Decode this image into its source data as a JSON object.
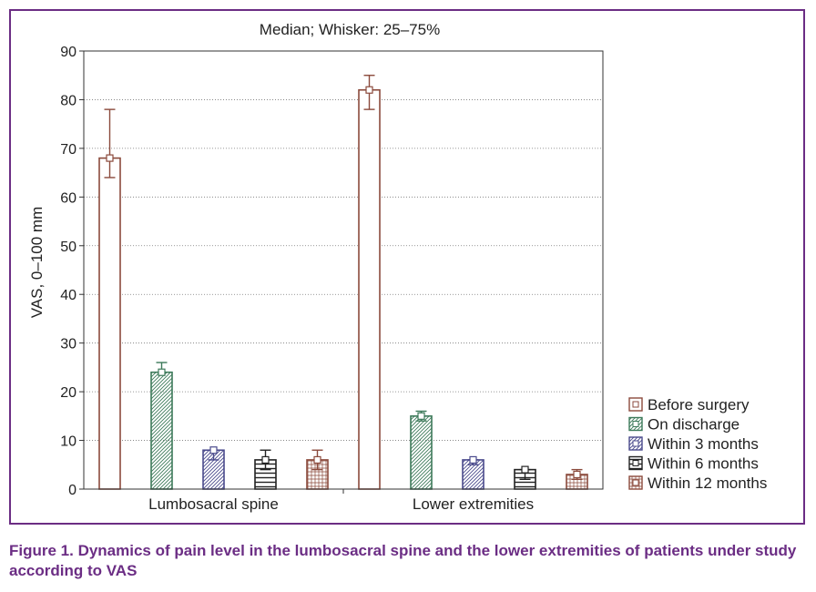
{
  "chart_data": {
    "type": "bar",
    "title": "Median; Whisker: 25–75%",
    "ylabel": "VAS, 0–100 mm",
    "xlabel": "",
    "ylim": [
      0,
      90
    ],
    "yticks": [
      0,
      10,
      20,
      30,
      40,
      50,
      60,
      70,
      80,
      90
    ],
    "categories": [
      "Lumbosacral spine",
      "Lower extremities"
    ],
    "grid": true,
    "legend_position": "bottom-right",
    "series": [
      {
        "name": "Before surgery",
        "color": "#8b4a3c",
        "pattern": "none",
        "values": [
          68,
          82
        ],
        "low": [
          64,
          78
        ],
        "high": [
          78,
          85
        ]
      },
      {
        "name": "On discharge",
        "color": "#3d7a5a",
        "pattern": "diagonal",
        "values": [
          24,
          15
        ],
        "low": [
          24,
          14
        ],
        "high": [
          26,
          16
        ]
      },
      {
        "name": "Within 3 months",
        "color": "#4a4a8c",
        "pattern": "diagonal",
        "values": [
          8,
          6
        ],
        "low": [
          6,
          5
        ],
        "high": [
          8,
          6
        ]
      },
      {
        "name": "Within 6 months",
        "color": "#222222",
        "pattern": "horizontal",
        "values": [
          6,
          4
        ],
        "low": [
          4,
          2
        ],
        "high": [
          8,
          4
        ]
      },
      {
        "name": "Within 12 months",
        "color": "#8b4a3c",
        "pattern": "grid",
        "values": [
          6,
          3
        ],
        "low": [
          4,
          2
        ],
        "high": [
          8,
          4
        ]
      }
    ]
  },
  "caption": "Figure 1. Dynamics of pain level in the lumbosacral spine and the lower extremities of patients under study according to VAS",
  "colors": {
    "frame": "#6b2d84",
    "caption": "#6b2d84"
  }
}
